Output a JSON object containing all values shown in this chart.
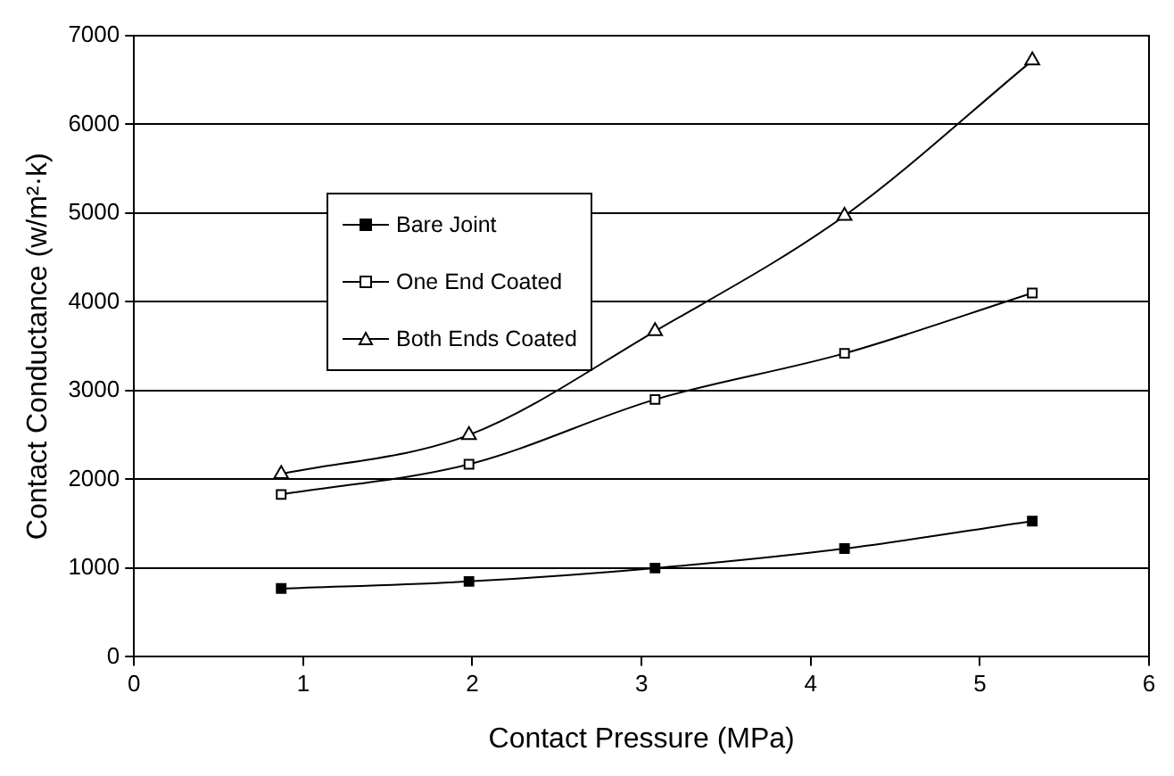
{
  "chart_data": {
    "type": "line",
    "xlabel": "Contact Pressure (MPa)",
    "ylabel": "Contact Conductance (w/m²·k)",
    "x": [
      0.87,
      1.98,
      3.08,
      4.2,
      5.31
    ],
    "series": [
      {
        "name": "Bare Joint",
        "color": "#000000",
        "marker": "square",
        "values": [
          770,
          850,
          1000,
          1220,
          1530
        ]
      },
      {
        "name": "One End Coated",
        "color": "#000000",
        "marker": "square-open",
        "values": [
          1830,
          2170,
          2900,
          3420,
          4100
        ]
      },
      {
        "name": "Both Ends Coated",
        "color": "#000000",
        "marker": "triangle",
        "values": [
          2060,
          2500,
          3670,
          4970,
          6720
        ]
      }
    ],
    "xlim": [
      0,
      6
    ],
    "xticks": [
      0,
      1,
      2,
      3,
      4,
      5,
      6
    ],
    "ylim": [
      0,
      7000
    ],
    "yticks": [
      0,
      1000,
      2000,
      3000,
      4000,
      5000,
      6000,
      7000
    ],
    "grid": "y",
    "legend": "top left",
    "line_style": "solid"
  }
}
